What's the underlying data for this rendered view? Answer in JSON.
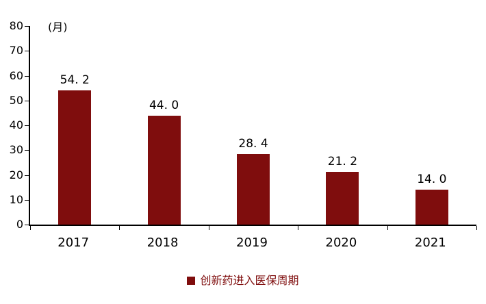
{
  "chart_data": {
    "type": "bar",
    "title": "",
    "unit_label": "(月)",
    "categories": [
      "2017",
      "2018",
      "2019",
      "2020",
      "2021"
    ],
    "values": [
      54.2,
      44.0,
      28.4,
      21.2,
      14.0
    ],
    "value_labels": [
      "54. 2",
      "44. 0",
      "28. 4",
      "21. 2",
      "14. 0"
    ],
    "ylabel": "",
    "xlabel": "",
    "ylim": [
      0,
      80
    ],
    "yticks": [
      0,
      10,
      20,
      30,
      40,
      50,
      60,
      70,
      80
    ],
    "grid": false,
    "bar_color": "#7f0d0d",
    "axis_color": "#000000",
    "legend_position": "bottom",
    "legend": [
      {
        "label": "创新药进入医保周期",
        "color": "#7f0d0d",
        "marker": "square"
      }
    ]
  }
}
